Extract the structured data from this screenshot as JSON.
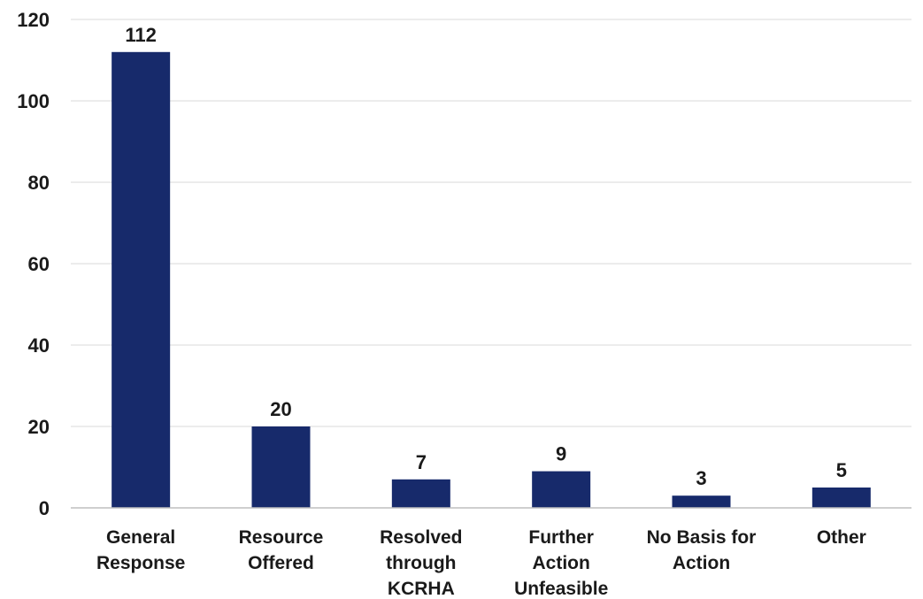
{
  "chart_data": {
    "type": "bar",
    "title": "",
    "xlabel": "",
    "ylabel": "",
    "categories": [
      [
        "General",
        "Response"
      ],
      [
        "Resource",
        "Offered"
      ],
      [
        "Resolved",
        "through",
        "KCRHA"
      ],
      [
        "Further",
        "Action",
        "Unfeasible"
      ],
      [
        "No Basis for",
        "Action"
      ],
      [
        "Other"
      ]
    ],
    "values": [
      112,
      20,
      7,
      9,
      3,
      5
    ],
    "data_labels": [
      "112",
      "20",
      "7",
      "9",
      "3",
      "5"
    ],
    "ylim": [
      0,
      120
    ],
    "yticks": [
      0,
      20,
      40,
      60,
      80,
      100,
      120
    ],
    "grid": true,
    "legend": "none",
    "bar_color": "#172a6b"
  }
}
